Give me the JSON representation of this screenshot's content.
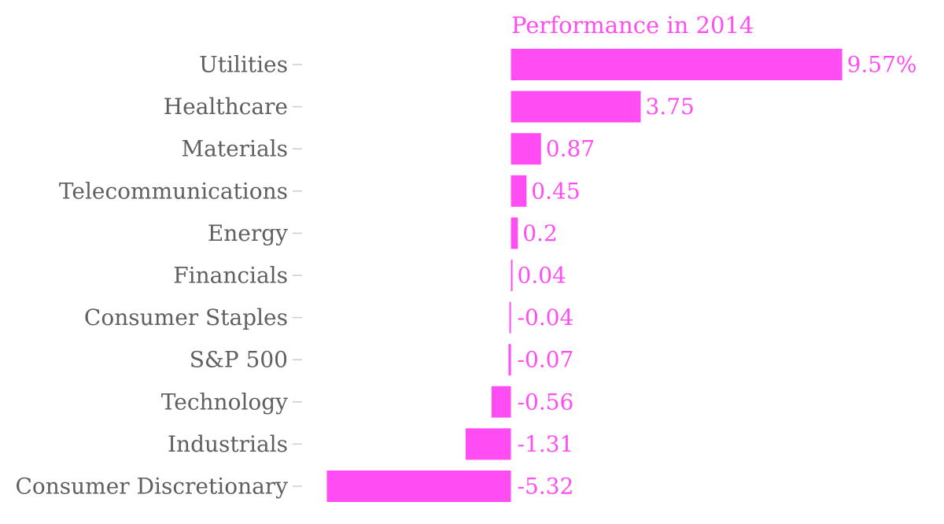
{
  "chart_data": {
    "type": "bar",
    "orientation": "horizontal",
    "title": "Performance in 2014",
    "xlabel": "",
    "ylabel": "",
    "categories": [
      "Utilities",
      "Healthcare",
      "Materials",
      "Telecommunications",
      "Energy",
      "Financials",
      "Consumer Staples",
      "S&P 500",
      "Technology",
      "Industrials",
      "Consumer Discretionary"
    ],
    "values": [
      9.57,
      3.75,
      0.87,
      0.45,
      0.2,
      0.04,
      -0.04,
      -0.07,
      -0.56,
      -1.31,
      -5.32
    ],
    "value_labels": [
      "9.57%",
      "3.75",
      "0.87",
      "0.45",
      "0.2",
      "0.04",
      "-0.04",
      "-0.07",
      "-0.56",
      "-1.31",
      "-5.32"
    ],
    "xlim": [
      -5.32,
      9.57
    ],
    "grid": false,
    "legend": "none",
    "colors": {
      "bar": "#ff4cf3",
      "title": "#ff4cf3",
      "value_label": "#ff4cf3",
      "category_label": "#5f5f5f",
      "tick": "#cccccc"
    }
  }
}
